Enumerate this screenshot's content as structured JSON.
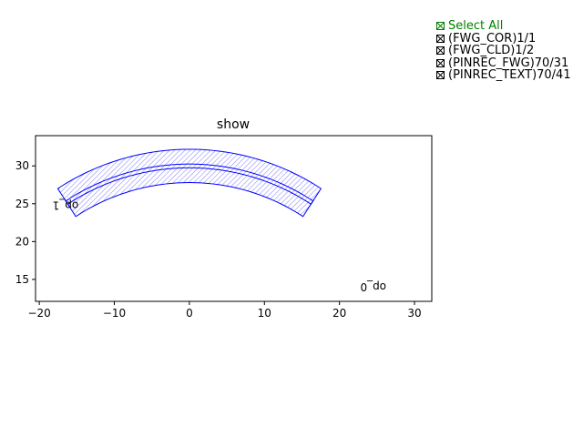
{
  "legend": {
    "select_all": "Select All",
    "items": [
      {
        "label": "(FWG_COR)1/1",
        "checked": true
      },
      {
        "label": "(FWG_CLD)1/2",
        "checked": true
      },
      {
        "label": "(PINREC_FWG)70/31",
        "checked": true
      },
      {
        "label": "(PINREC_TEXT)70/41",
        "checked": true
      }
    ],
    "select_all_color": "#008000"
  },
  "chart_data": {
    "type": "scatter",
    "title": "show",
    "xlabel": "",
    "ylabel": "",
    "xlim": [
      -20.5,
      32.3
    ],
    "ylim": [
      12.1,
      34
    ],
    "xticks": [
      -20,
      -10,
      0,
      10,
      20,
      30
    ],
    "yticks": [
      15,
      20,
      25,
      30
    ],
    "arc": {
      "center": [
        0,
        0
      ],
      "start_deg": 57,
      "end_deg": 123
    },
    "shapes": [
      {
        "name": "(FWG_CLD)1/2",
        "inner_radius": 27.8,
        "outer_radius": 32.2,
        "color": "#0000ff",
        "hatch": true
      },
      {
        "name": "(FWG_COR)1/1",
        "inner_radius": 29.75,
        "outer_radius": 30.25,
        "color": "#0000ff",
        "hatch": false
      },
      {
        "name": "(PINREC_FWG)70/31",
        "color": "#0000ff"
      }
    ],
    "port_labels": [
      {
        "text": "op_1",
        "x": -16.5,
        "y": 25.3,
        "rotation": 180
      },
      {
        "text": "op_0",
        "x": 24.5,
        "y": 14.5,
        "rotation": 180
      }
    ]
  }
}
